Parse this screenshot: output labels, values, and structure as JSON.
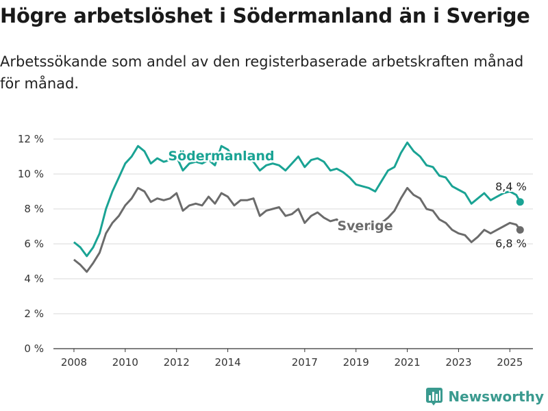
{
  "colors": {
    "sodermanland": "#1aa394",
    "sverige": "#6b6b6b",
    "grid": "#d9d9d9",
    "axis": "#333333",
    "brand": "#3a9a8f"
  },
  "brand": {
    "name": "Newsworthy",
    "icon": "bar-chart-logo-icon"
  },
  "chart_data": {
    "type": "line",
    "title": "Högre arbetslöshet i Södermanland än i Sverige",
    "subtitle": "Arbetssökande som andel av den registerbaserade arbetskraften månad för månad.",
    "x_ticks": [
      "2008",
      "2010",
      "2012",
      "2014",
      "2017",
      "2019",
      "2021",
      "2023",
      "2025"
    ],
    "y_ticks": [
      "0 %",
      "2 %",
      "4 %",
      "6 %",
      "8 %",
      "10 %",
      "12 %"
    ],
    "ylim": [
      0,
      12
    ],
    "xlim": [
      2007.2,
      2025.9
    ],
    "x_tick_positions": [
      2008,
      2010,
      2012,
      2014,
      2017,
      2019,
      2021,
      2023,
      2025
    ],
    "series": [
      {
        "name": "Södermanland",
        "end_label": "8,4 %",
        "points": [
          [
            2008.0,
            6.1
          ],
          [
            2008.25,
            5.8
          ],
          [
            2008.5,
            5.3
          ],
          [
            2008.75,
            5.8
          ],
          [
            2009.0,
            6.6
          ],
          [
            2009.25,
            8.0
          ],
          [
            2009.5,
            9.0
          ],
          [
            2009.75,
            9.8
          ],
          [
            2010.0,
            10.6
          ],
          [
            2010.25,
            11.0
          ],
          [
            2010.5,
            11.6
          ],
          [
            2010.75,
            11.3
          ],
          [
            2011.0,
            10.6
          ],
          [
            2011.25,
            10.9
          ],
          [
            2011.5,
            10.7
          ],
          [
            2011.75,
            10.8
          ],
          [
            2012.0,
            11.0
          ],
          [
            2012.25,
            10.2
          ],
          [
            2012.5,
            10.6
          ],
          [
            2012.75,
            10.7
          ],
          [
            2013.0,
            10.6
          ],
          [
            2013.25,
            10.8
          ],
          [
            2013.5,
            10.5
          ],
          [
            2013.75,
            11.6
          ],
          [
            2014.0,
            11.4
          ],
          [
            2014.25,
            10.9
          ],
          [
            2014.5,
            10.8
          ],
          [
            2014.75,
            10.9
          ],
          [
            2015.0,
            10.7
          ],
          [
            2015.25,
            10.2
          ],
          [
            2015.5,
            10.5
          ],
          [
            2015.75,
            10.6
          ],
          [
            2016.0,
            10.5
          ],
          [
            2016.25,
            10.2
          ],
          [
            2016.5,
            10.6
          ],
          [
            2016.75,
            11.0
          ],
          [
            2017.0,
            10.4
          ],
          [
            2017.25,
            10.8
          ],
          [
            2017.5,
            10.9
          ],
          [
            2017.75,
            10.7
          ],
          [
            2018.0,
            10.2
          ],
          [
            2018.25,
            10.3
          ],
          [
            2018.5,
            10.1
          ],
          [
            2018.75,
            9.8
          ],
          [
            2019.0,
            9.4
          ],
          [
            2019.25,
            9.3
          ],
          [
            2019.5,
            9.2
          ],
          [
            2019.75,
            9.0
          ],
          [
            2020.0,
            9.6
          ],
          [
            2020.25,
            10.2
          ],
          [
            2020.5,
            10.4
          ],
          [
            2020.75,
            11.2
          ],
          [
            2021.0,
            11.8
          ],
          [
            2021.25,
            11.3
          ],
          [
            2021.5,
            11.0
          ],
          [
            2021.75,
            10.5
          ],
          [
            2022.0,
            10.4
          ],
          [
            2022.25,
            9.9
          ],
          [
            2022.5,
            9.8
          ],
          [
            2022.75,
            9.3
          ],
          [
            2023.0,
            9.1
          ],
          [
            2023.25,
            8.9
          ],
          [
            2023.5,
            8.3
          ],
          [
            2023.75,
            8.6
          ],
          [
            2024.0,
            8.9
          ],
          [
            2024.25,
            8.5
          ],
          [
            2024.5,
            8.7
          ],
          [
            2024.75,
            8.9
          ],
          [
            2025.0,
            9.0
          ],
          [
            2025.25,
            8.8
          ],
          [
            2025.4,
            8.4
          ]
        ]
      },
      {
        "name": "Sverige",
        "end_label": "6,8 %",
        "points": [
          [
            2008.0,
            5.1
          ],
          [
            2008.25,
            4.8
          ],
          [
            2008.5,
            4.4
          ],
          [
            2008.75,
            4.9
          ],
          [
            2009.0,
            5.5
          ],
          [
            2009.25,
            6.6
          ],
          [
            2009.5,
            7.2
          ],
          [
            2009.75,
            7.6
          ],
          [
            2010.0,
            8.2
          ],
          [
            2010.25,
            8.6
          ],
          [
            2010.5,
            9.2
          ],
          [
            2010.75,
            9.0
          ],
          [
            2011.0,
            8.4
          ],
          [
            2011.25,
            8.6
          ],
          [
            2011.5,
            8.5
          ],
          [
            2011.75,
            8.6
          ],
          [
            2012.0,
            8.9
          ],
          [
            2012.25,
            7.9
          ],
          [
            2012.5,
            8.2
          ],
          [
            2012.75,
            8.3
          ],
          [
            2013.0,
            8.2
          ],
          [
            2013.25,
            8.7
          ],
          [
            2013.5,
            8.3
          ],
          [
            2013.75,
            8.9
          ],
          [
            2014.0,
            8.7
          ],
          [
            2014.25,
            8.2
          ],
          [
            2014.5,
            8.5
          ],
          [
            2014.75,
            8.5
          ],
          [
            2015.0,
            8.6
          ],
          [
            2015.25,
            7.6
          ],
          [
            2015.5,
            7.9
          ],
          [
            2015.75,
            8.0
          ],
          [
            2016.0,
            8.1
          ],
          [
            2016.25,
            7.6
          ],
          [
            2016.5,
            7.7
          ],
          [
            2016.75,
            8.0
          ],
          [
            2017.0,
            7.2
          ],
          [
            2017.25,
            7.6
          ],
          [
            2017.5,
            7.8
          ],
          [
            2017.75,
            7.5
          ],
          [
            2018.0,
            7.3
          ],
          [
            2018.25,
            7.4
          ],
          [
            2018.5,
            7.0
          ],
          [
            2018.75,
            6.8
          ],
          [
            2019.0,
            6.7
          ],
          [
            2019.25,
            6.8
          ],
          [
            2019.5,
            6.9
          ],
          [
            2019.75,
            6.8
          ],
          [
            2020.0,
            7.2
          ],
          [
            2020.25,
            7.5
          ],
          [
            2020.5,
            7.9
          ],
          [
            2020.75,
            8.6
          ],
          [
            2021.0,
            9.2
          ],
          [
            2021.25,
            8.8
          ],
          [
            2021.5,
            8.6
          ],
          [
            2021.75,
            8.0
          ],
          [
            2022.0,
            7.9
          ],
          [
            2022.25,
            7.4
          ],
          [
            2022.5,
            7.2
          ],
          [
            2022.75,
            6.8
          ],
          [
            2023.0,
            6.6
          ],
          [
            2023.25,
            6.5
          ],
          [
            2023.5,
            6.1
          ],
          [
            2023.75,
            6.4
          ],
          [
            2024.0,
            6.8
          ],
          [
            2024.25,
            6.6
          ],
          [
            2024.5,
            6.8
          ],
          [
            2024.75,
            7.0
          ],
          [
            2025.0,
            7.2
          ],
          [
            2025.25,
            7.1
          ],
          [
            2025.4,
            6.8
          ]
        ]
      }
    ],
    "grid": true
  }
}
